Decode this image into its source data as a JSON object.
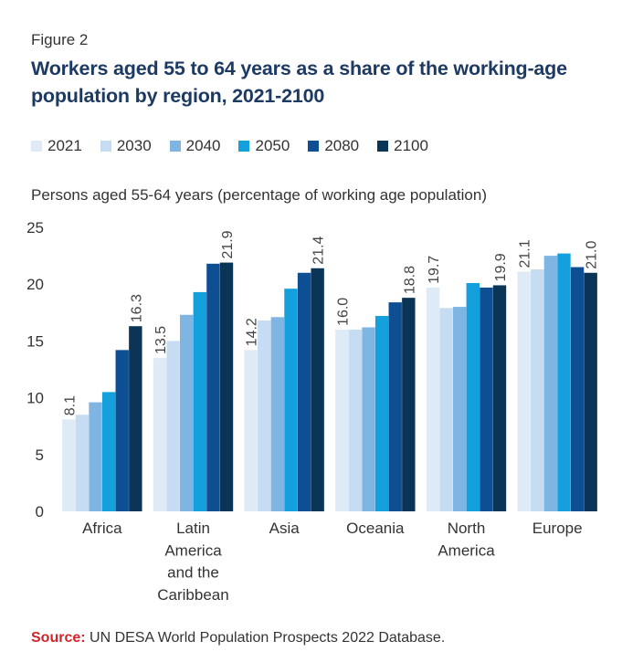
{
  "figure_label": "Figure 2",
  "source": {
    "label": "Source:",
    "text": " UN DESA World Population Prospects 2022 Database."
  },
  "colors": {
    "title": "#1d3a63",
    "source_label": "#d2232a"
  },
  "chart_data": {
    "type": "bar",
    "title": "Workers aged 55 to 64 years as a share of the working-age population by region, 2021-2100",
    "ylabel": "Persons aged 55-64 years (percentage of working age population)",
    "xlabel": "",
    "ylim": [
      0,
      25
    ],
    "yticks": [
      0,
      5,
      10,
      15,
      20,
      25
    ],
    "legend_position": "top",
    "grid": false,
    "categories": [
      [
        "Africa"
      ],
      [
        "Latin",
        "America",
        "and the",
        "Caribbean"
      ],
      [
        "Asia"
      ],
      [
        "Oceania"
      ],
      [
        "North",
        "America"
      ],
      [
        "Europe"
      ]
    ],
    "series": [
      {
        "name": "2021",
        "color": "#deebf7",
        "values": [
          8.1,
          13.5,
          14.2,
          16.0,
          19.7,
          21.1
        ],
        "labeled": true
      },
      {
        "name": "2030",
        "color": "#c6dcf2",
        "values": [
          8.5,
          15.0,
          16.8,
          16.0,
          17.9,
          21.3
        ],
        "labeled": false
      },
      {
        "name": "2040",
        "color": "#7fb5e3",
        "values": [
          9.6,
          17.3,
          17.1,
          16.2,
          18.0,
          22.5
        ],
        "labeled": false
      },
      {
        "name": "2050",
        "color": "#14a0dc",
        "values": [
          10.5,
          19.3,
          19.6,
          17.2,
          20.1,
          22.7
        ],
        "labeled": false
      },
      {
        "name": "2080",
        "color": "#0e4f94",
        "values": [
          14.2,
          21.8,
          21.0,
          18.4,
          19.7,
          21.5
        ],
        "labeled": false
      },
      {
        "name": "2100",
        "color": "#0b3557",
        "values": [
          16.3,
          21.9,
          21.4,
          18.8,
          19.9,
          21.0
        ],
        "labeled": true
      }
    ],
    "value_labels": {
      "2021": [
        "8.1",
        "13.5",
        "14.2",
        "16.0",
        "19.7",
        "21.1"
      ],
      "2100": [
        "16.3",
        "21.9",
        "21.4",
        "18.8",
        "19.9",
        "21.0"
      ]
    }
  }
}
